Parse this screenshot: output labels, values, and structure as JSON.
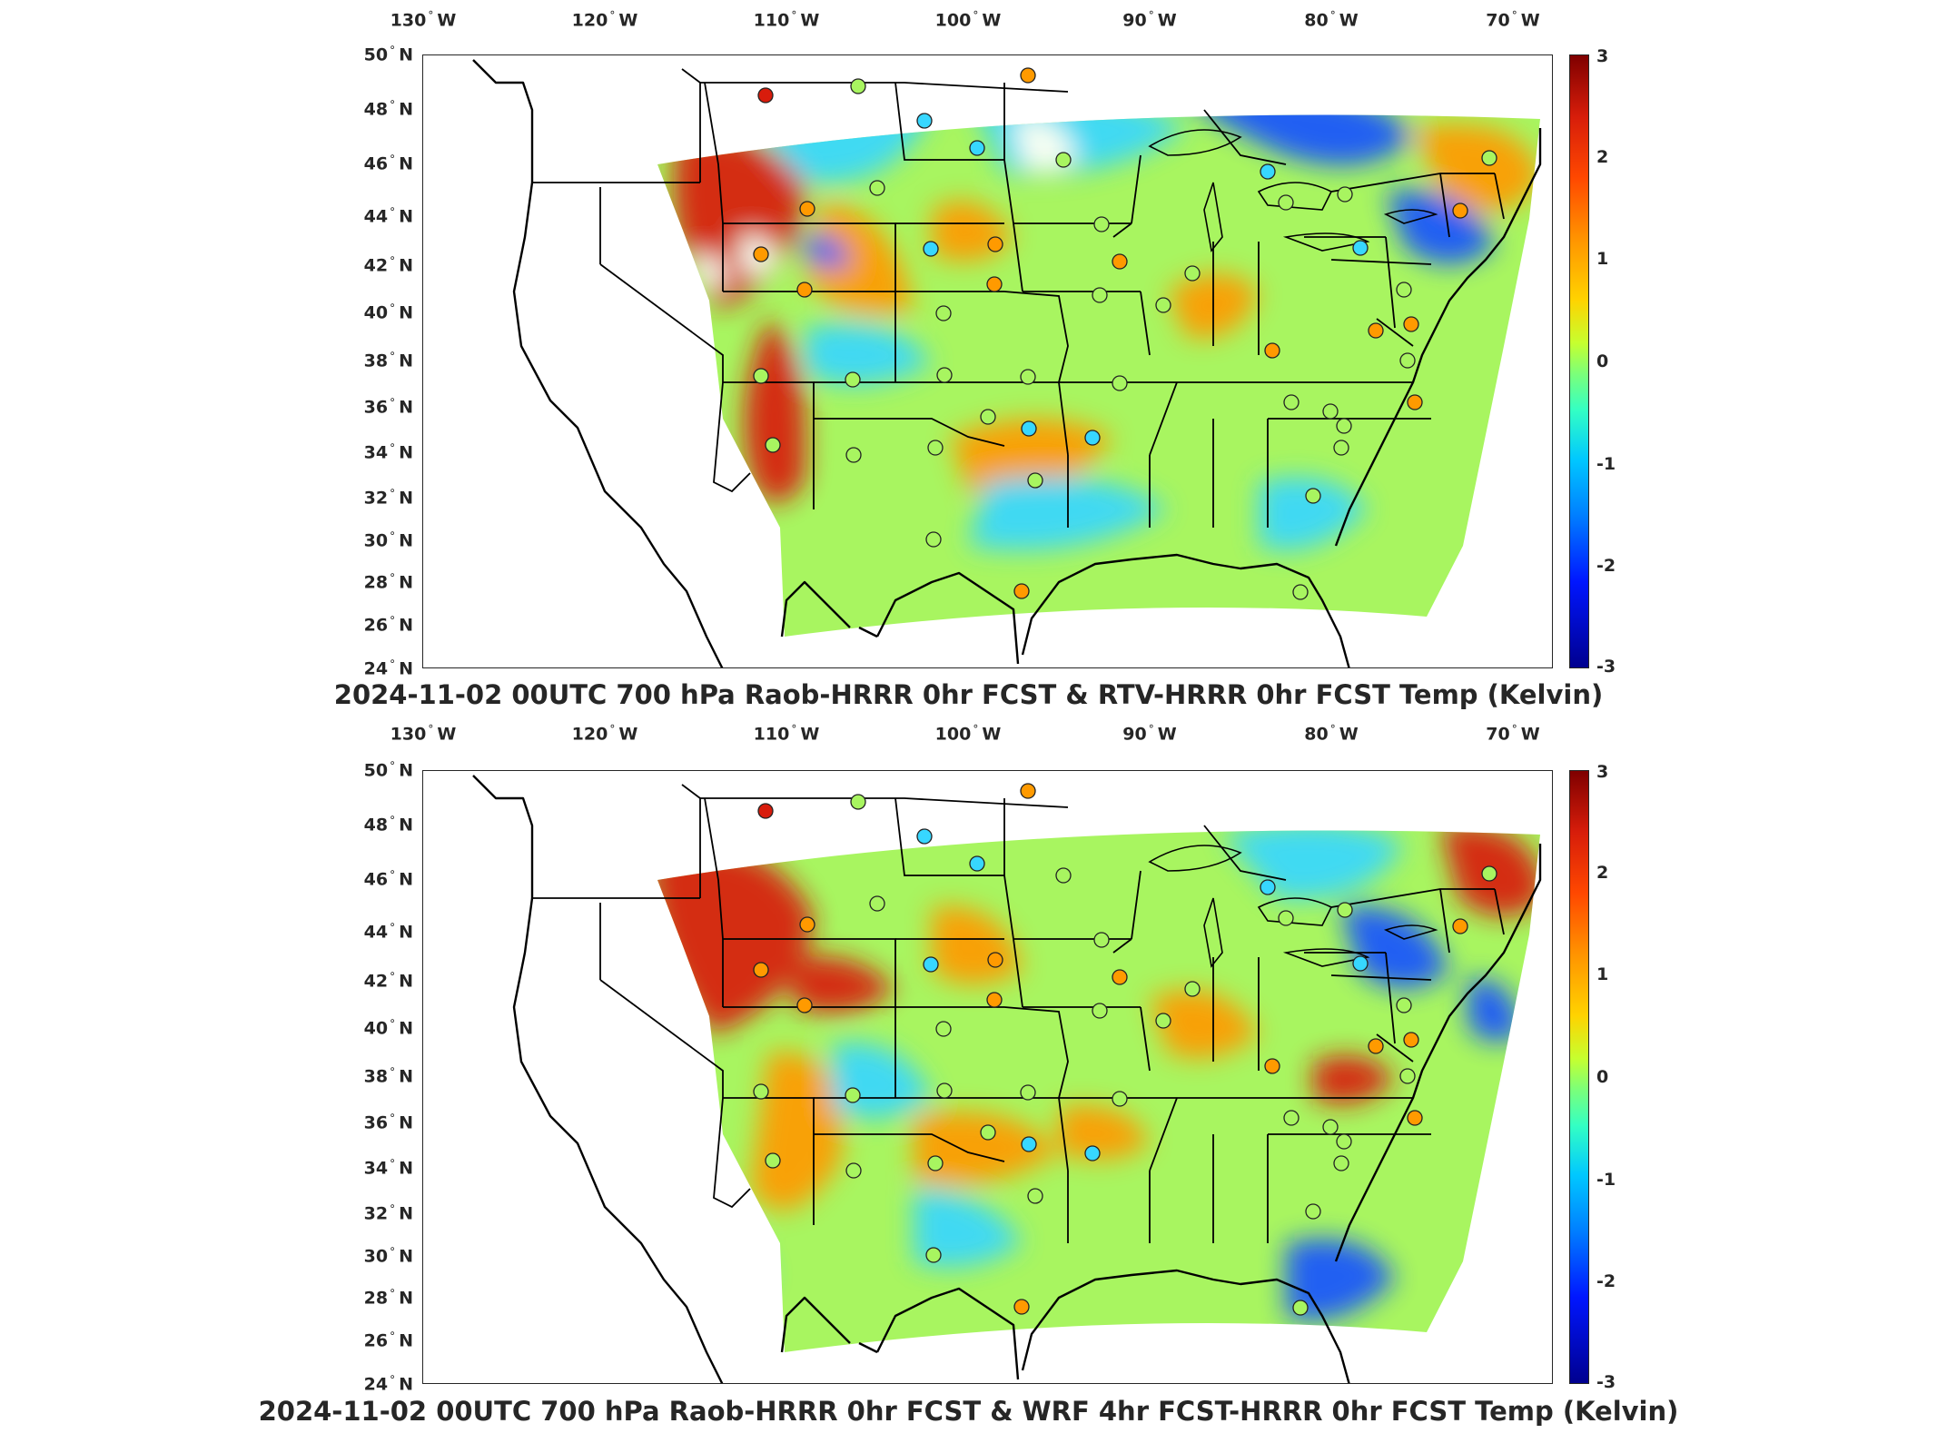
{
  "panels": [
    {
      "title": "2024-11-02 00UTC 700 hPa Raob-HRRR 0hr FCST & RTV-HRRR 0hr FCST Temp (Kelvin)",
      "variant": "rtv"
    },
    {
      "title": "2024-11-02 00UTC 700 hPa Raob-HRRR 0hr FCST & WRF 4hr FCST-HRRR 0hr FCST Temp (Kelvin)",
      "variant": "wrf"
    }
  ],
  "lon_labels": [
    "130",
    "120",
    "110",
    "100",
    "90",
    "80",
    "70"
  ],
  "lon_hemisphere": "W",
  "lat_labels": [
    "50",
    "48",
    "46",
    "44",
    "42",
    "40",
    "38",
    "36",
    "34",
    "32",
    "30",
    "28",
    "26",
    "24"
  ],
  "lat_hemisphere": "N",
  "colorbar": {
    "ticks": [
      "3",
      "2",
      "1",
      "0",
      "-1",
      "-2",
      "-3"
    ],
    "range": [
      -3,
      3
    ],
    "colormap": "jet"
  },
  "colors": {
    "hot": "#d81c0c",
    "warm": "#ff9a00",
    "neutral": "#a8f560",
    "cool": "#37d7ff",
    "cold": "#1452ff",
    "missing": "#ffffff"
  }
}
